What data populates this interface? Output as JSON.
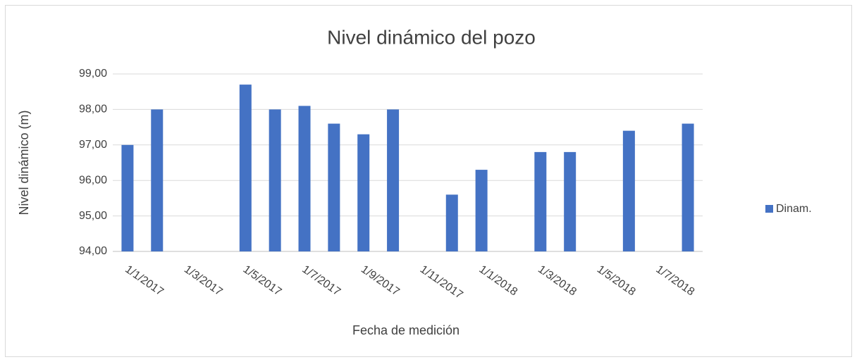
{
  "chart_data": {
    "type": "bar",
    "title": "Nivel dinámico del pozo",
    "x_label": "Fecha de medición",
    "y_label": "Nivel dinámico (m)",
    "categories": [
      "1/1/2017",
      null,
      "1/3/2017",
      null,
      "1/5/2017",
      null,
      "1/7/2017",
      null,
      "1/9/2017",
      null,
      "1/11/2017",
      null,
      "1/1/2018",
      null,
      "1/3/2018",
      null,
      "1/5/2018",
      null,
      "1/7/2018",
      null
    ],
    "series": [
      {
        "name": "Dinam.",
        "color": "#4472c4",
        "values": [
          97.0,
          98.0,
          null,
          null,
          98.7,
          98.0,
          98.1,
          97.6,
          97.3,
          98.0,
          null,
          95.6,
          96.3,
          null,
          96.8,
          96.8,
          null,
          97.4,
          null,
          97.6
        ]
      }
    ],
    "ylim": [
      94,
      99
    ],
    "yticks": [
      {
        "value": 94,
        "label": "94,00"
      },
      {
        "value": 95,
        "label": "95,00"
      },
      {
        "value": 96,
        "label": "96,00"
      },
      {
        "value": 97,
        "label": "97,00"
      },
      {
        "value": 98,
        "label": "98,00"
      },
      {
        "value": 99,
        "label": "99,00"
      }
    ],
    "grid": true,
    "legend": "right"
  }
}
